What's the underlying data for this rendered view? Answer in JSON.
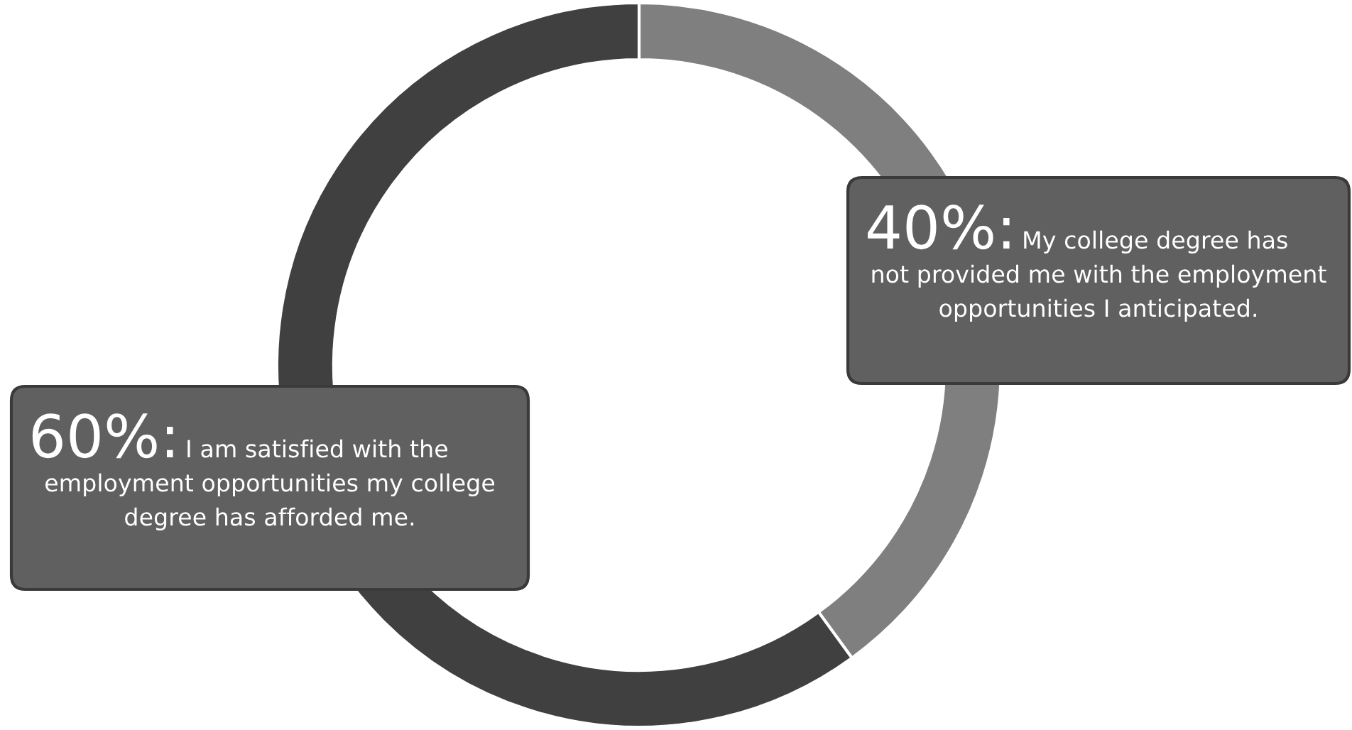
{
  "chart_data": {
    "type": "donut",
    "categories": [
      "My college degree has not provided me with the employment opportunities I anticipated.",
      "I am satisfied with the employment opportunities my college degree has afforded me."
    ],
    "values": [
      40,
      60
    ],
    "colors": [
      "#7f7f7f",
      "#404040"
    ],
    "value_labels": [
      "40%:",
      "60%:"
    ]
  }
}
